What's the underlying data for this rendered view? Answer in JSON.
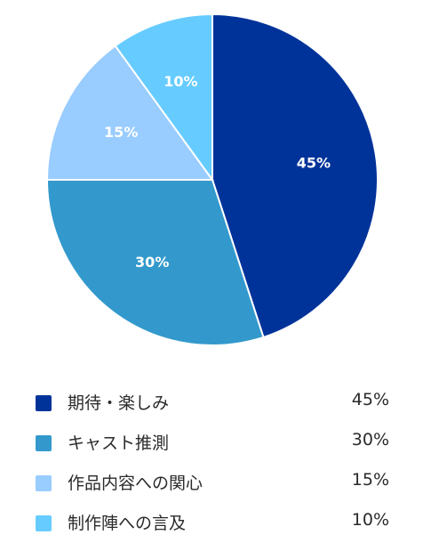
{
  "chart_data": {
    "type": "pie",
    "categories": [
      "期待・楽しみ",
      "キャスト推測",
      "作品内容への関心",
      "制作陣への言及"
    ],
    "values": [
      45,
      30,
      15,
      10
    ],
    "slice_labels": [
      "45%",
      "30%",
      "15%",
      "10%"
    ],
    "colors": [
      "#003399",
      "#3399cc",
      "#99ccff",
      "#66ccff"
    ],
    "legend_position": "bottom"
  },
  "legend": {
    "items": [
      {
        "label": "期待・楽しみ",
        "value": "45%",
        "color": "#003399"
      },
      {
        "label": "キャスト推測",
        "value": "30%",
        "color": "#3399cc"
      },
      {
        "label": "作品内容への関心",
        "value": "15%",
        "color": "#99ccff"
      },
      {
        "label": "制作陣への言及",
        "value": "10%",
        "color": "#66ccff"
      }
    ]
  }
}
